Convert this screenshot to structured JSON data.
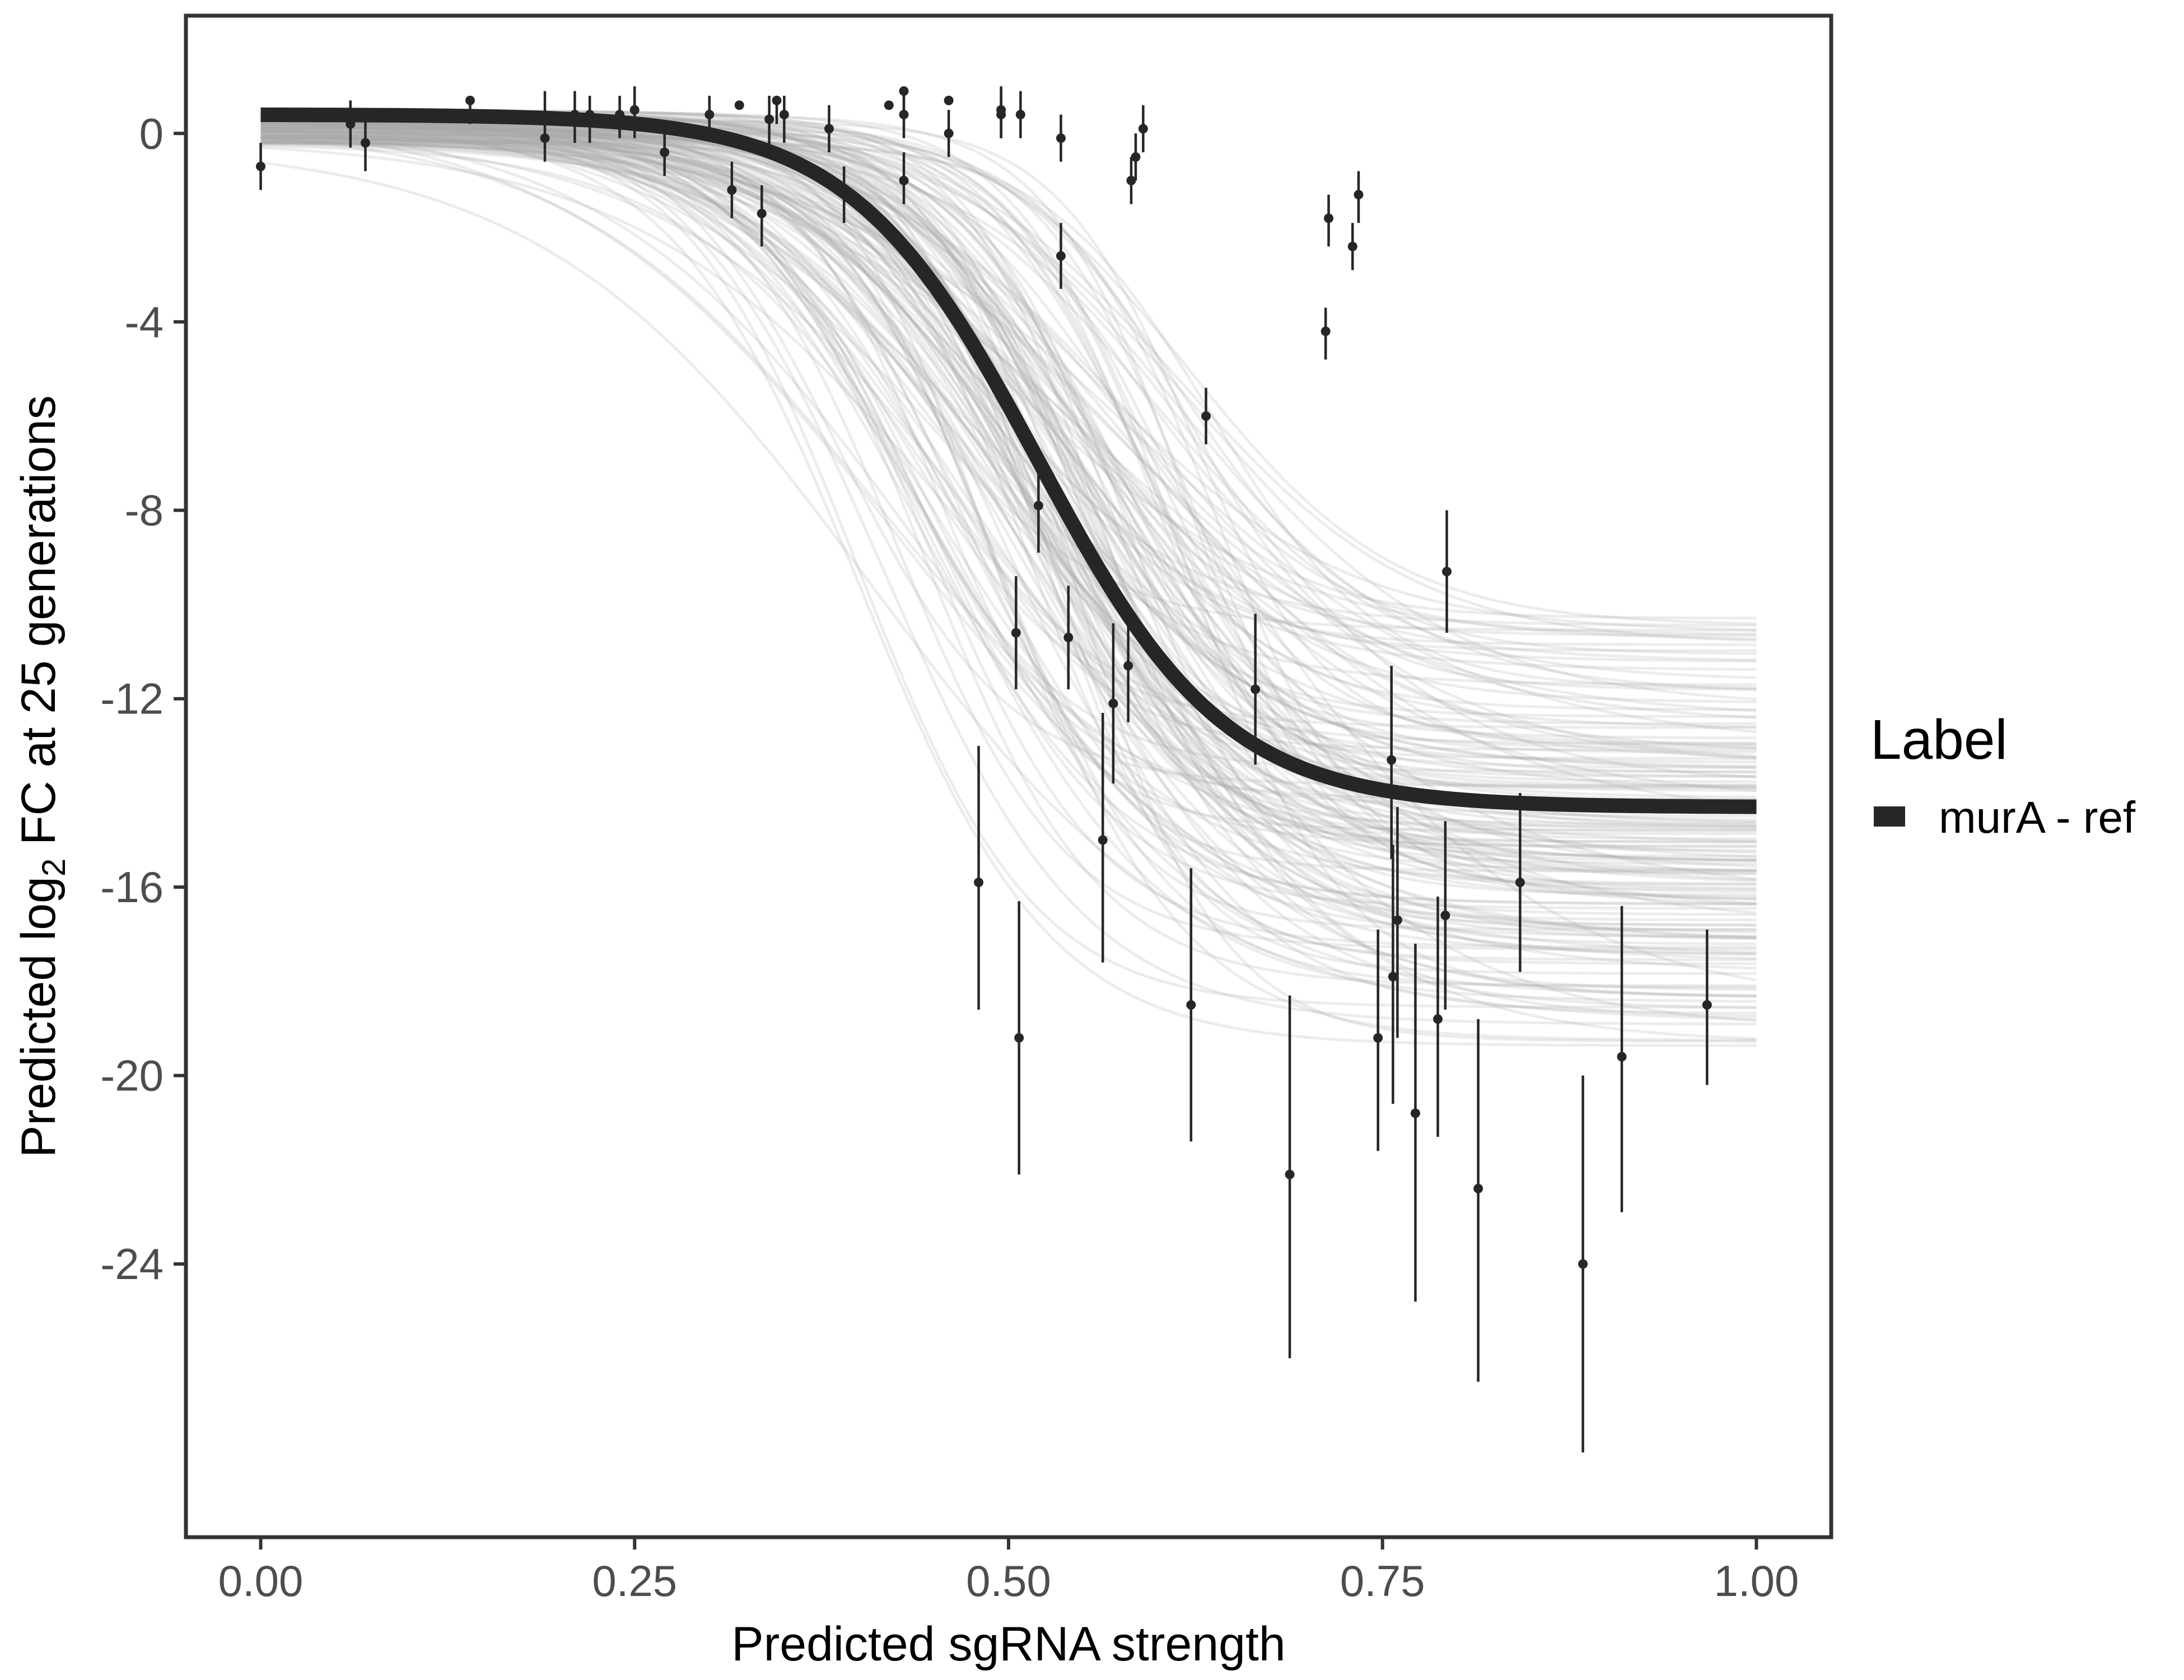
{
  "chart_data": {
    "type": "line",
    "xlabel": "Predicted sgRNA strength",
    "ylabel_prefix": "Predicted  log",
    "ylabel_subscript": "2",
    "ylabel_suffix": " FC at 25 generations",
    "xlim": [
      -0.05,
      1.05
    ],
    "ylim": [
      -29.8,
      2.5
    ],
    "x_ticks": [
      0,
      0.25,
      0.5,
      0.75,
      1
    ],
    "x_tick_labels": [
      "0.00",
      "0.25",
      "0.50",
      "0.75",
      "1.00"
    ],
    "y_ticks": [
      0,
      -4,
      -8,
      -12,
      -16,
      -20,
      -24
    ],
    "y_tick_labels": [
      "0",
      "-4",
      "-8",
      "-12",
      "-16",
      "-20",
      "-24"
    ],
    "grid": false,
    "legend": {
      "title": "Label",
      "position": "right",
      "entries": [
        {
          "label": "murA - ref",
          "color": "#262626"
        }
      ]
    },
    "fit_curve": {
      "name": "murA - ref",
      "model": "logistic",
      "upper": 0.4,
      "lower": -14.3,
      "midpoint": 0.52,
      "slope": 16,
      "color": "#262626"
    },
    "posterior_draws": {
      "count": 160,
      "color": "#aaaaaa",
      "upper_range": [
        -0.2,
        0.5
      ],
      "lower_range": [
        -20.0,
        -9.7
      ],
      "midpoint_range": [
        0.38,
        0.66
      ],
      "slope_range": [
        9,
        22
      ]
    },
    "points": [
      {
        "x": 0.0,
        "y": -0.7,
        "lo": -1.2,
        "hi": -0.2
      },
      {
        "x": 0.06,
        "y": 0.2,
        "lo": -0.3,
        "hi": 0.7
      },
      {
        "x": 0.07,
        "y": -0.2,
        "lo": -0.8,
        "hi": 0.3
      },
      {
        "x": 0.14,
        "y": 0.7,
        "lo": 0.2,
        "hi": 0.7
      },
      {
        "x": 0.19,
        "y": -0.1,
        "lo": -0.6,
        "hi": 0.9
      },
      {
        "x": 0.21,
        "y": 0.4,
        "lo": -0.2,
        "hi": 0.9
      },
      {
        "x": 0.22,
        "y": 0.4,
        "lo": -0.2,
        "hi": 0.8
      },
      {
        "x": 0.24,
        "y": 0.4,
        "lo": -0.1,
        "hi": 0.8
      },
      {
        "x": 0.25,
        "y": 0.5,
        "lo": -0.1,
        "hi": 1.0
      },
      {
        "x": 0.27,
        "y": -0.4,
        "lo": -0.9,
        "hi": 0.1
      },
      {
        "x": 0.3,
        "y": 0.4,
        "lo": -0.1,
        "hi": 0.8
      },
      {
        "x": 0.315,
        "y": -1.2,
        "lo": -1.8,
        "hi": -0.6
      },
      {
        "x": 0.32,
        "y": 0.6,
        "lo": 0.6,
        "hi": 0.6
      },
      {
        "x": 0.335,
        "y": -1.7,
        "lo": -2.4,
        "hi": -1.1
      },
      {
        "x": 0.34,
        "y": 0.3,
        "lo": -0.3,
        "hi": 0.8
      },
      {
        "x": 0.345,
        "y": 0.7,
        "lo": 0.2,
        "hi": 0.7
      },
      {
        "x": 0.35,
        "y": 0.4,
        "lo": -0.2,
        "hi": 0.8
      },
      {
        "x": 0.38,
        "y": 0.1,
        "lo": -0.4,
        "hi": 0.6
      },
      {
        "x": 0.39,
        "y": -1.3,
        "lo": -1.9,
        "hi": -0.7
      },
      {
        "x": 0.42,
        "y": 0.6,
        "lo": 0.6,
        "hi": 0.6
      },
      {
        "x": 0.43,
        "y": 0.4,
        "lo": -0.1,
        "hi": 1.0
      },
      {
        "x": 0.43,
        "y": 0.9,
        "lo": 0.5,
        "hi": 0.9
      },
      {
        "x": 0.43,
        "y": -1.0,
        "lo": -1.5,
        "hi": -0.4
      },
      {
        "x": 0.46,
        "y": 0.0,
        "lo": -0.5,
        "hi": 0.5
      },
      {
        "x": 0.46,
        "y": 0.7,
        "lo": 0.7,
        "hi": 0.7
      },
      {
        "x": 0.48,
        "y": -15.9,
        "lo": -18.6,
        "hi": -13.0
      },
      {
        "x": 0.495,
        "y": 0.5,
        "lo": -0.1,
        "hi": 1.0
      },
      {
        "x": 0.495,
        "y": 0.4,
        "lo": -0.1,
        "hi": 0.9
      },
      {
        "x": 0.505,
        "y": -10.6,
        "lo": -11.8,
        "hi": -9.4
      },
      {
        "x": 0.507,
        "y": -19.2,
        "lo": -22.1,
        "hi": -16.3
      },
      {
        "x": 0.508,
        "y": 0.4,
        "lo": -0.1,
        "hi": 0.9
      },
      {
        "x": 0.52,
        "y": -7.9,
        "lo": -8.9,
        "hi": -6.9
      },
      {
        "x": 0.535,
        "y": -0.1,
        "lo": -0.6,
        "hi": 0.4
      },
      {
        "x": 0.535,
        "y": -2.6,
        "lo": -3.3,
        "hi": -1.9
      },
      {
        "x": 0.54,
        "y": -10.7,
        "lo": -11.8,
        "hi": -9.6
      },
      {
        "x": 0.563,
        "y": -15.0,
        "lo": -17.6,
        "hi": -12.3
      },
      {
        "x": 0.57,
        "y": -12.1,
        "lo": -13.8,
        "hi": -10.4
      },
      {
        "x": 0.58,
        "y": -11.3,
        "lo": -12.5,
        "hi": -10.0
      },
      {
        "x": 0.582,
        "y": -1.0,
        "lo": -1.5,
        "hi": -0.5
      },
      {
        "x": 0.585,
        "y": -0.5,
        "lo": -1.0,
        "hi": 0.0
      },
      {
        "x": 0.59,
        "y": 0.1,
        "lo": -0.4,
        "hi": 0.6
      },
      {
        "x": 0.622,
        "y": -18.5,
        "lo": -21.4,
        "hi": -15.6
      },
      {
        "x": 0.632,
        "y": -6.0,
        "lo": -6.6,
        "hi": -5.4
      },
      {
        "x": 0.665,
        "y": -11.8,
        "lo": -13.4,
        "hi": -10.2
      },
      {
        "x": 0.688,
        "y": -22.1,
        "lo": -26.0,
        "hi": -18.3
      },
      {
        "x": 0.712,
        "y": -4.2,
        "lo": -4.8,
        "hi": -3.7
      },
      {
        "x": 0.714,
        "y": -1.8,
        "lo": -2.4,
        "hi": -1.3
      },
      {
        "x": 0.73,
        "y": -2.4,
        "lo": -2.9,
        "hi": -1.9
      },
      {
        "x": 0.734,
        "y": -1.3,
        "lo": -1.9,
        "hi": -0.8
      },
      {
        "x": 0.747,
        "y": -19.2,
        "lo": -21.6,
        "hi": -16.9
      },
      {
        "x": 0.756,
        "y": -13.3,
        "lo": -15.4,
        "hi": -11.3
      },
      {
        "x": 0.757,
        "y": -17.9,
        "lo": -20.6,
        "hi": -15.1
      },
      {
        "x": 0.76,
        "y": -16.7,
        "lo": -19.2,
        "hi": -14.3
      },
      {
        "x": 0.772,
        "y": -20.8,
        "lo": -24.8,
        "hi": -17.2
      },
      {
        "x": 0.787,
        "y": -18.8,
        "lo": -21.3,
        "hi": -16.2
      },
      {
        "x": 0.792,
        "y": -16.6,
        "lo": -18.6,
        "hi": -14.6
      },
      {
        "x": 0.793,
        "y": -9.3,
        "lo": -10.6,
        "hi": -8.0
      },
      {
        "x": 0.814,
        "y": -22.4,
        "lo": -26.5,
        "hi": -18.8
      },
      {
        "x": 0.842,
        "y": -15.9,
        "lo": -17.8,
        "hi": -14.0
      },
      {
        "x": 0.884,
        "y": -24.0,
        "lo": -28.0,
        "hi": -20.0
      },
      {
        "x": 0.91,
        "y": -19.6,
        "lo": -22.9,
        "hi": -16.4
      },
      {
        "x": 0.967,
        "y": -18.5,
        "lo": -20.2,
        "hi": -16.9
      }
    ]
  }
}
